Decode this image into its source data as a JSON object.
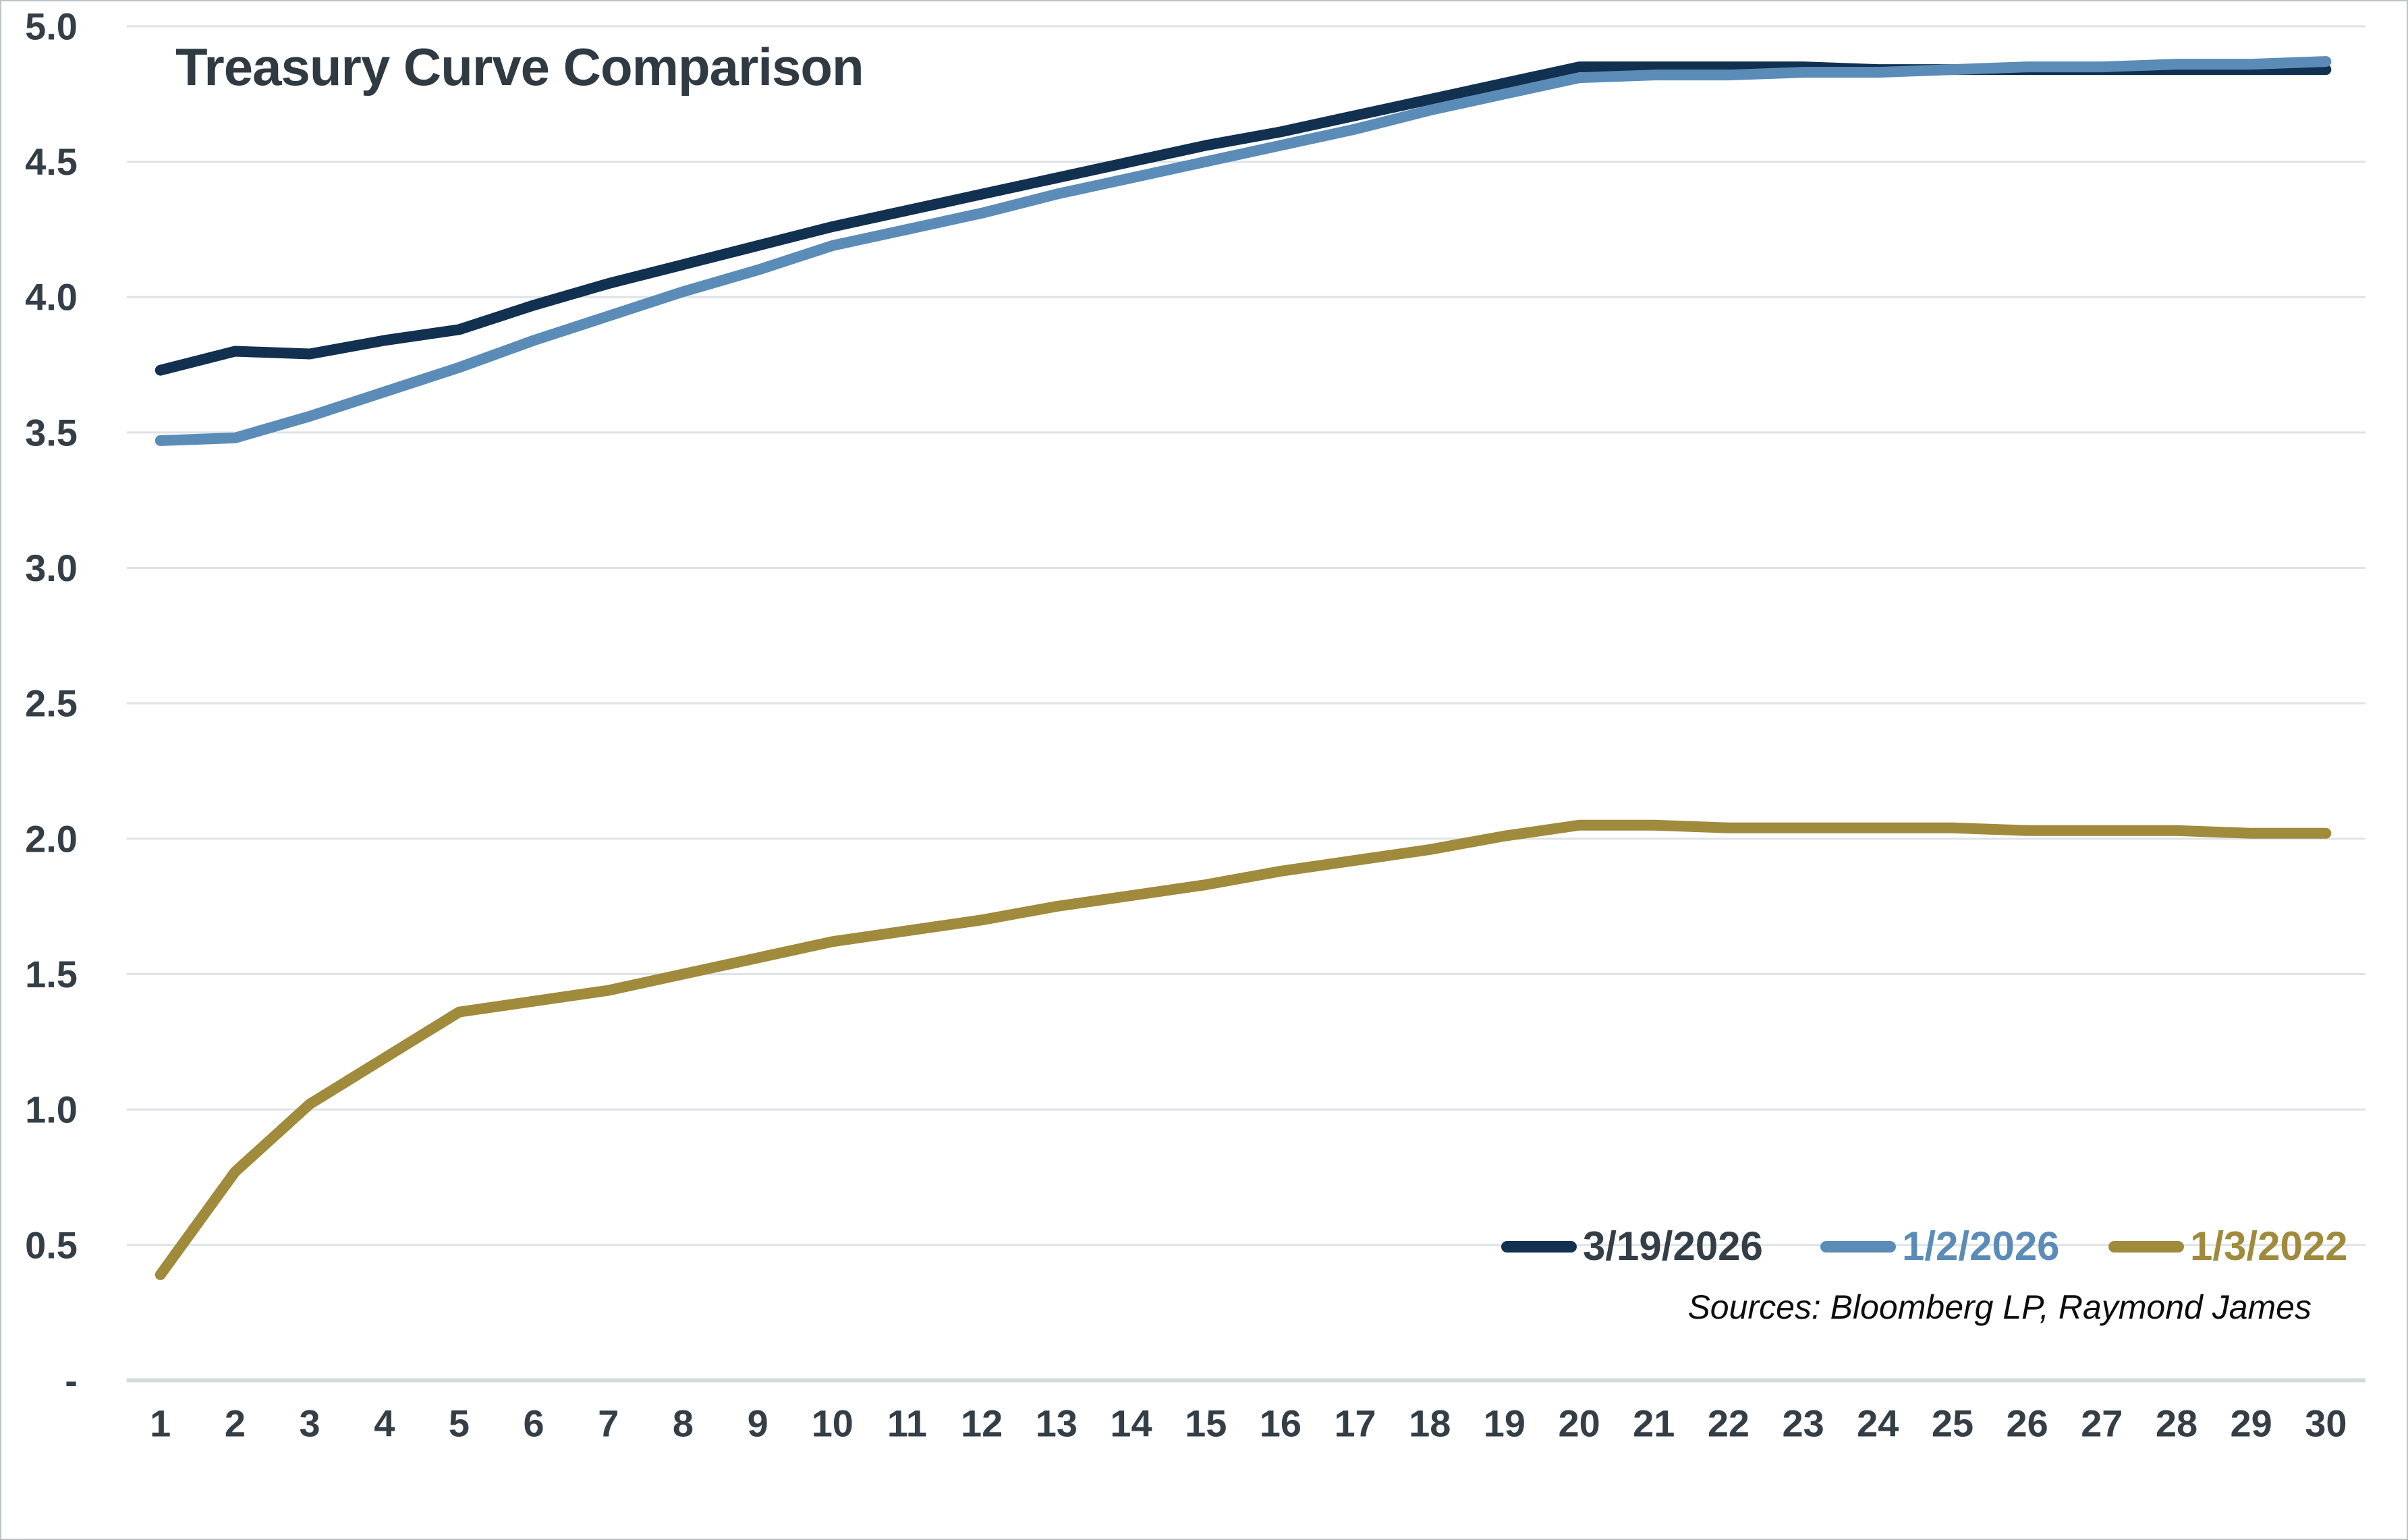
{
  "chart_data": {
    "type": "line",
    "title": "Treasury Curve Comparison",
    "xlabel": "",
    "ylabel": "",
    "x": [
      1,
      2,
      3,
      4,
      5,
      6,
      7,
      8,
      9,
      10,
      11,
      12,
      13,
      14,
      15,
      16,
      17,
      18,
      19,
      20,
      21,
      22,
      23,
      24,
      25,
      26,
      27,
      28,
      29,
      30
    ],
    "xlim": [
      1,
      30
    ],
    "ylim": [
      0,
      5.0
    ],
    "y_ticks": [
      {
        "value": 5.0,
        "label": "5.0"
      },
      {
        "value": 4.5,
        "label": "4.5"
      },
      {
        "value": 4.0,
        "label": "4.0"
      },
      {
        "value": 3.5,
        "label": "3.5"
      },
      {
        "value": 3.0,
        "label": "3.0"
      },
      {
        "value": 2.5,
        "label": "2.5"
      },
      {
        "value": 2.0,
        "label": "2.0"
      },
      {
        "value": 1.5,
        "label": "1.5"
      },
      {
        "value": 1.0,
        "label": "1.0"
      },
      {
        "value": 0.5,
        "label": "0.5"
      },
      {
        "value": 0.0,
        "label": "-"
      }
    ],
    "grid": "horizontal",
    "legend_position": "inside-bottom-right",
    "series": [
      {
        "name": "3/19/2026",
        "color": "#12304f",
        "label_color": "#333e46",
        "values": [
          3.73,
          3.8,
          3.79,
          3.84,
          3.88,
          3.97,
          4.05,
          4.12,
          4.19,
          4.26,
          4.32,
          4.38,
          4.44,
          4.5,
          4.56,
          4.61,
          4.67,
          4.73,
          4.79,
          4.85,
          4.85,
          4.85,
          4.85,
          4.84,
          4.84,
          4.84,
          4.84,
          4.84,
          4.84,
          4.84
        ]
      },
      {
        "name": "1/2/2026",
        "color": "#5b8cb8",
        "label_color": "#5b8cb8",
        "values": [
          3.47,
          3.48,
          3.56,
          3.65,
          3.74,
          3.84,
          3.93,
          4.02,
          4.1,
          4.19,
          4.25,
          4.31,
          4.38,
          4.44,
          4.5,
          4.56,
          4.62,
          4.69,
          4.75,
          4.81,
          4.82,
          4.82,
          4.83,
          4.83,
          4.84,
          4.85,
          4.85,
          4.86,
          4.86,
          4.87
        ]
      },
      {
        "name": "1/3/2022",
        "color": "#a08a3c",
        "label_color": "#a08a3c",
        "values": [
          0.39,
          0.77,
          1.02,
          1.19,
          1.36,
          1.4,
          1.44,
          1.5,
          1.56,
          1.62,
          1.66,
          1.7,
          1.75,
          1.79,
          1.83,
          1.88,
          1.92,
          1.96,
          2.01,
          2.05,
          2.05,
          2.04,
          2.04,
          2.04,
          2.04,
          2.03,
          2.03,
          2.03,
          2.02,
          2.02
        ]
      }
    ]
  },
  "sources": "Sources: Bloomberg LP, Raymond James",
  "colors": {
    "background": "#ffffff",
    "gridline": "#dde3e7",
    "axis_line": "#d4dbdf",
    "tick_label": "#333e46",
    "title": "#2f3a42",
    "border": "#bcc2c6"
  }
}
